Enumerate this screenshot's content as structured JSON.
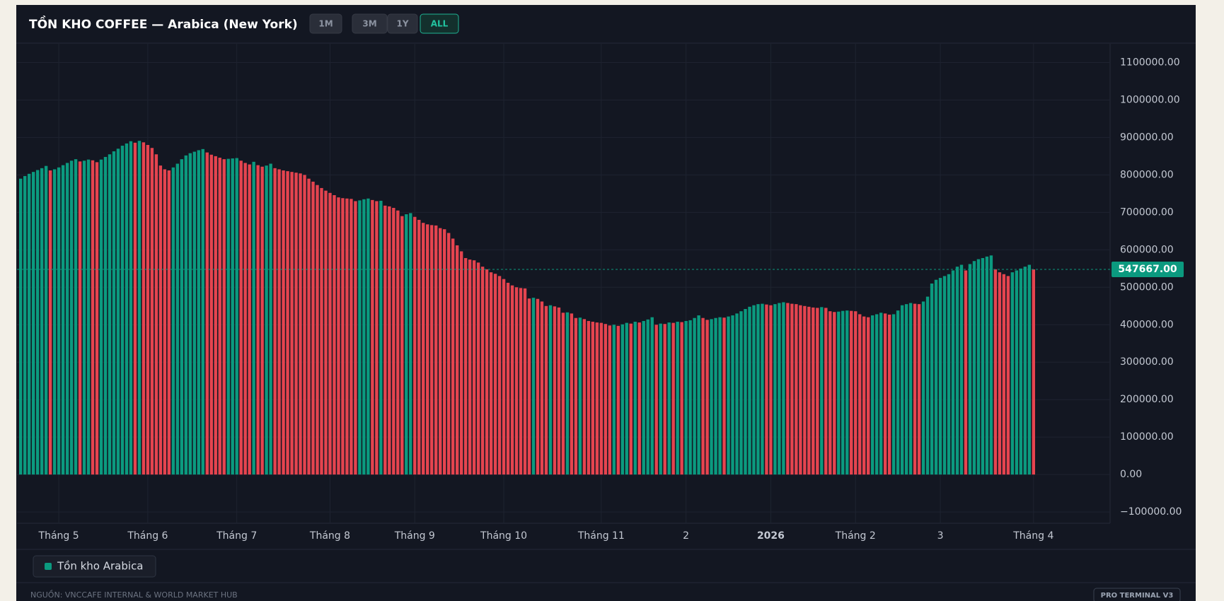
{
  "chart_data": {
    "type": "bar",
    "title": "TỒN KHO COFFEE — Arabica (New York)",
    "ranges": [
      "1M",
      "3M",
      "1Y",
      "ALL"
    ],
    "active_range": "ALL",
    "series": [
      {
        "name": "Tồn kho Arabica",
        "color": "#0b9a7f",
        "down_color": "#e5444f",
        "values": [
          790000,
          797000,
          803000,
          808000,
          813000,
          818000,
          824000,
          812000,
          815000,
          820000,
          826000,
          832000,
          838000,
          842000,
          836000,
          838000,
          841000,
          839000,
          834000,
          841000,
          848000,
          855000,
          863000,
          870000,
          878000,
          884000,
          890000,
          886000,
          891000,
          887000,
          880000,
          872000,
          855000,
          825000,
          815000,
          812000,
          820000,
          830000,
          842000,
          852000,
          858000,
          862000,
          866000,
          869000,
          860000,
          854000,
          850000,
          846000,
          842000,
          843000,
          844000,
          845000,
          838000,
          832000,
          828000,
          835000,
          826000,
          822000,
          825000,
          830000,
          818000,
          815000,
          812000,
          810000,
          808000,
          806000,
          804000,
          800000,
          790000,
          782000,
          773000,
          765000,
          758000,
          752000,
          746000,
          740000,
          738000,
          737000,
          736000,
          730000,
          732000,
          735000,
          737000,
          733000,
          730000,
          731000,
          718000,
          716000,
          712000,
          705000,
          690000,
          695000,
          698000,
          688000,
          680000,
          672000,
          668000,
          666000,
          665000,
          658000,
          655000,
          645000,
          630000,
          612000,
          596000,
          578000,
          574000,
          572000,
          566000,
          555000,
          548000,
          540000,
          536000,
          530000,
          522000,
          512000,
          505000,
          500000,
          498000,
          497000,
          470000,
          472000,
          469000,
          462000,
          450000,
          452000,
          449000,
          446000,
          432000,
          433000,
          430000,
          418000,
          419000,
          415000,
          410000,
          408000,
          406000,
          405000,
          402000,
          398000,
          400000,
          397000,
          401000,
          405000,
          403000,
          408000,
          406000,
          410000,
          414000,
          420000,
          400000,
          403000,
          402000,
          406000,
          405000,
          408000,
          407000,
          410000,
          412000,
          418000,
          425000,
          418000,
          413000,
          415000,
          418000,
          420000,
          419000,
          422000,
          425000,
          430000,
          436000,
          442000,
          448000,
          452000,
          455000,
          456000,
          454000,
          452000,
          455000,
          458000,
          460000,
          458000,
          456000,
          455000,
          452000,
          450000,
          448000,
          446000,
          445000,
          447000,
          445000,
          436000,
          434000,
          435000,
          437000,
          438000,
          437000,
          436000,
          428000,
          422000,
          420000,
          425000,
          428000,
          432000,
          430000,
          427000,
          428000,
          438000,
          452000,
          455000,
          458000,
          456000,
          455000,
          462000,
          475000,
          510000,
          520000,
          525000,
          530000,
          535000,
          545000,
          555000,
          560000,
          545000,
          562000,
          570000,
          575000,
          578000,
          582000,
          585000,
          548000,
          540000,
          535000,
          530000,
          540000,
          545000,
          550000,
          555000,
          560000,
          547667
        ]
      }
    ],
    "last_value_label": "547667.00",
    "ylim": [
      -130000,
      1150000
    ],
    "yticks": [
      {
        "value": -100000,
        "label": "−100000.00"
      },
      {
        "value": 0,
        "label": "0.00"
      },
      {
        "value": 100000,
        "label": "100000.00"
      },
      {
        "value": 200000,
        "label": "200000.00"
      },
      {
        "value": 300000,
        "label": "300000.00"
      },
      {
        "value": 400000,
        "label": "400000.00"
      },
      {
        "value": 500000,
        "label": "500000.00"
      },
      {
        "value": 600000,
        "label": "600000.00"
      },
      {
        "value": 700000,
        "label": "700000.00"
      },
      {
        "value": 800000,
        "label": "800000.00"
      },
      {
        "value": 900000,
        "label": "900000.00"
      },
      {
        "value": 1000000,
        "label": "1000000.00"
      },
      {
        "value": 1100000,
        "label": "1100000.00"
      }
    ],
    "xticks": [
      {
        "value": 9,
        "label": "Tháng 5"
      },
      {
        "value": 30,
        "label": "Tháng 6"
      },
      {
        "value": 51,
        "label": "Tháng 7"
      },
      {
        "value": 73,
        "label": "Tháng 8"
      },
      {
        "value": 93,
        "label": "Tháng 9"
      },
      {
        "value": 114,
        "label": "Tháng 10"
      },
      {
        "value": 137,
        "label": "Tháng 11"
      },
      {
        "value": 157,
        "label": "2"
      },
      {
        "value": 177,
        "label": "2026"
      },
      {
        "value": 197,
        "label": "Tháng 2"
      },
      {
        "value": 217,
        "label": "3"
      },
      {
        "value": 239,
        "label": "Tháng 4"
      }
    ],
    "grid": true,
    "footer": {
      "source": "NGUỒN: VNCCAFE INTERNAL & WORLD MARKET HUB",
      "badge": "PRO TERMINAL V3"
    }
  }
}
